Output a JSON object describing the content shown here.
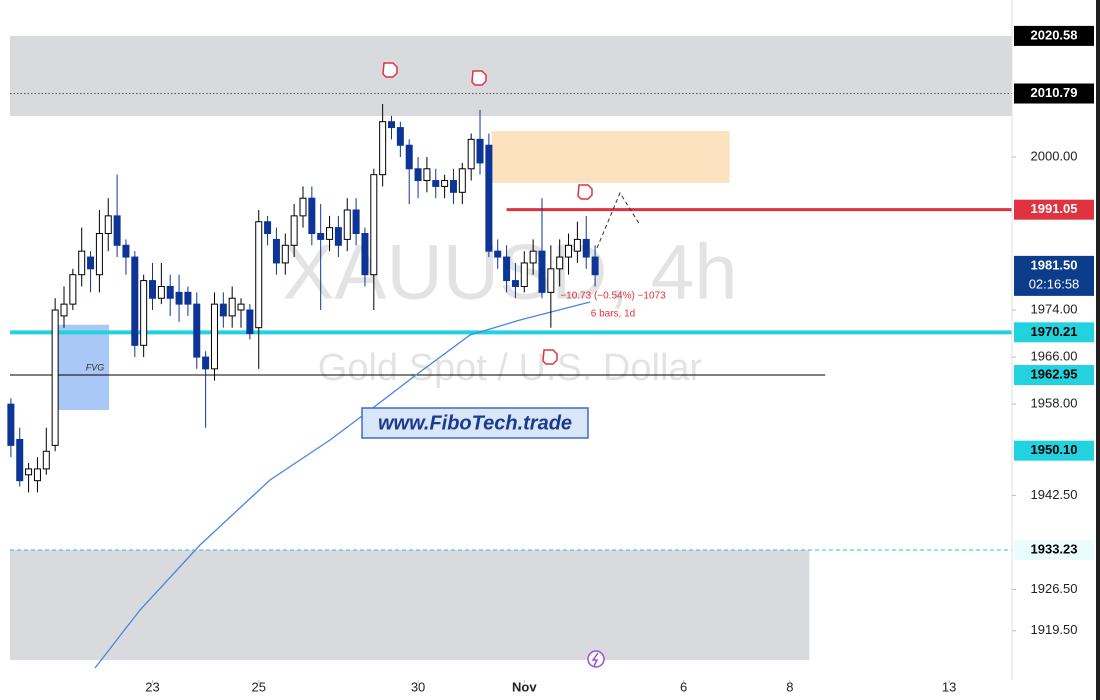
{
  "chart_data": {
    "type": "candlestick",
    "title": "XAUUSD, 4h",
    "subtitle": "Gold Spot / U.S. Dollar",
    "link": "www.FiboTech.trade",
    "annotations": [
      "FVG",
      "−10.73 (−0.54%) −1073",
      "6 bars, 1d"
    ],
    "countdown": "02:16:58",
    "up_color": "#ffffff",
    "down_color": "#0c3596",
    "x": [
      0,
      1,
      2,
      3,
      4,
      5,
      6,
      7,
      8,
      9,
      10,
      11,
      12,
      13,
      14,
      15,
      16,
      17,
      18,
      19,
      20,
      21,
      22,
      23,
      24,
      25,
      26,
      27,
      28,
      29,
      30,
      31,
      32,
      33,
      34,
      35,
      36,
      37,
      38,
      39,
      40,
      41,
      42,
      43,
      44,
      45,
      46,
      47,
      48,
      49,
      50,
      51,
      52,
      53,
      54,
      55,
      56,
      57,
      58,
      59,
      60,
      61,
      62,
      63,
      64,
      65,
      66
    ],
    "open": [
      1958,
      1952,
      1946,
      1945,
      1947,
      1951,
      1973,
      1975,
      1980,
      1983,
      1980,
      1987,
      1990,
      1985,
      1983,
      1968,
      1979,
      1976,
      1978,
      1977,
      1977,
      1975,
      1966,
      1964,
      1975,
      1973,
      1974,
      1974,
      1971,
      1989,
      1986,
      1982,
      1985,
      1990,
      1993,
      1987,
      1986,
      1988,
      1986,
      1991,
      1987,
      1980,
      1997,
      2006,
      2005,
      2002,
      1998,
      1996,
      1996,
      1995,
      1996,
      1994,
      1998,
      2003,
      2002,
      1984,
      1983,
      1979,
      1978,
      1982,
      1984,
      1977,
      1981,
      1983,
      1984,
      1986,
      1983
    ],
    "high": [
      1959,
      1954,
      1948,
      1949,
      1954,
      1976,
      1978,
      1981,
      1988,
      1984,
      1991,
      1993,
      1997,
      1986,
      1984,
      1980,
      1982,
      1982,
      1980,
      1980,
      1978,
      1977,
      1967,
      1977,
      1977,
      1978,
      1976,
      1975,
      1991,
      1990,
      1988,
      1987,
      1992,
      1995,
      1995,
      1992,
      1990,
      1990,
      1993,
      1993,
      1988,
      1998,
      2009,
      2007,
      2006,
      2003,
      2000,
      2000,
      1998,
      1997,
      1998,
      1999,
      2004,
      2008,
      2004,
      1986,
      1985,
      1982,
      1984,
      1986,
      1993,
      1985,
      1986,
      1987,
      1989,
      1990,
      1985
    ],
    "low": [
      1949,
      1944,
      1943,
      1943,
      1946,
      1950,
      1971,
      1974,
      1978,
      1977,
      1977,
      1984,
      1983,
      1980,
      1966,
      1966,
      1974,
      1975,
      1973,
      1972,
      1973,
      1964,
      1954,
      1962,
      1971,
      1971,
      1971,
      1969,
      1964,
      1985,
      1980,
      1980,
      1983,
      1988,
      1985,
      1974,
      1984,
      1983,
      1984,
      1985,
      1978,
      1974,
      1995,
      2003,
      2000,
      1992,
      1993,
      1994,
      1993,
      1993,
      1992,
      1992,
      1996,
      1997,
      1983,
      1981,
      1977,
      1976,
      1977,
      1980,
      1976,
      1971,
      1978,
      1980,
      1982,
      1981,
      1978
    ],
    "close": [
      1951,
      1945,
      1947,
      1947,
      1950,
      1974,
      1975,
      1980,
      1984,
      1981,
      1987,
      1990,
      1985,
      1983,
      1968,
      1979,
      1976,
      1978,
      1976,
      1975,
      1975,
      1966,
      1964,
      1975,
      1973,
      1976,
      1975,
      1970,
      1989,
      1987,
      1982,
      1985,
      1990,
      1993,
      1987,
      1986,
      1988,
      1985,
      1991,
      1987,
      1980,
      1997,
      2006,
      2005,
      2002,
      1998,
      1996,
      1998,
      1995,
      1996,
      1994,
      1998,
      2003,
      1999,
      1984,
      1983,
      1979,
      1978,
      1982,
      1984,
      1977,
      1981,
      1983,
      1985,
      1986,
      1983,
      1980
    ],
    "xlim": [
      -0.1,
      113.1
    ],
    "ylim": [
      1911.13,
      2026.68
    ],
    "xticks": [
      {
        "value": 16,
        "label": "23"
      },
      {
        "value": 28,
        "label": "25"
      },
      {
        "value": 46,
        "label": "30"
      },
      {
        "value": 58,
        "label": "Nov"
      },
      {
        "value": 76,
        "label": "6"
      },
      {
        "value": 88,
        "label": "8"
      },
      {
        "value": 106,
        "label": "13"
      }
    ],
    "yticks": [
      {
        "value": 2000,
        "label": "2000.00"
      },
      {
        "value": 1974,
        "label": "1974.00"
      },
      {
        "value": 1966,
        "label": "1966.00"
      },
      {
        "value": 1958,
        "label": "1958.00"
      },
      {
        "value": 1942.5,
        "label": "1942.50"
      },
      {
        "value": 1926.5,
        "label": "1926.50"
      },
      {
        "value": 1919.5,
        "label": "1919.50"
      }
    ],
    "zones": [
      {
        "top": 2020.58,
        "bottom": 2006.97,
        "from": -0.1,
        "to": 113.1,
        "color": "#d9dadd"
      },
      {
        "top": 2004.4,
        "bottom": 1995.6,
        "from": 54.3,
        "to": 81.2,
        "color": "#fde2c0"
      },
      {
        "top": 1971.5,
        "bottom": 1957.0,
        "from": 5.2,
        "to": 11.1,
        "color": "#a9c8f5"
      },
      {
        "top": 1933.23,
        "bottom": 1914.5,
        "from": -0.1,
        "to": 90.2,
        "color": "#d9dadd"
      }
    ],
    "price_levels": [
      {
        "value": 2020.58,
        "bg": "#000000",
        "fg": "#ffffff"
      },
      {
        "value": 2010.79,
        "bg": "#000000",
        "fg": "#ffffff",
        "line": {
          "style": "dotted",
          "color": "#555555",
          "width": 1,
          "from": -0.1,
          "to": 113.1
        }
      },
      {
        "value": 1991.05,
        "bg": "#e03340",
        "fg": "#ffffff",
        "line": {
          "style": "solid",
          "color": "#e03340",
          "width": 3,
          "from": 56,
          "to": 113.1
        }
      },
      {
        "value": 1981.5,
        "label": "1981.50",
        "bg": "#0c3c8c",
        "fg": "#ffffff",
        "countdown": true
      },
      {
        "value": 1970.21,
        "bg": "#22d3df",
        "fg": "#000000",
        "line": {
          "style": "solid",
          "color": "#22d3df",
          "width": 4,
          "from": -0.1,
          "to": 113.1
        }
      },
      {
        "value": 1962.95,
        "bg": "#22d3df",
        "fg": "#000000",
        "line": {
          "style": "solid",
          "color": "#000000",
          "width": 1,
          "from": -0.1,
          "to": 92
        }
      },
      {
        "value": 1950.1,
        "label": "1950.10",
        "bg": "#22d3df",
        "fg": "#000000"
      },
      {
        "value": 1933.23,
        "bg": "#eafcfd",
        "fg": "#000000",
        "line": {
          "style": "dashed",
          "color": "#22c3df",
          "width": 1,
          "from": -0.1,
          "to": 113.1
        }
      }
    ]
  }
}
